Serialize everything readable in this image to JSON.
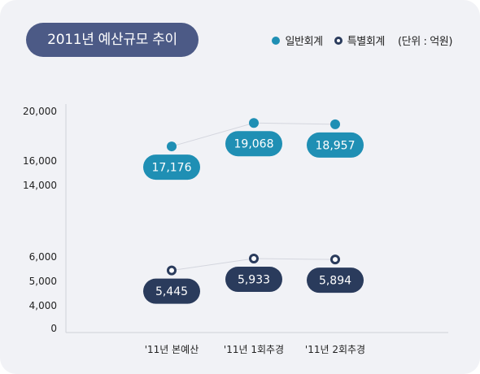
{
  "title": "2011년 예산규모 추이",
  "legend": {
    "general": "일반회계",
    "special": "특별회계",
    "unit": "(단위 : 억원)"
  },
  "colors": {
    "general": "#1f8fb4",
    "special": "#2a3b5c",
    "title_bg": "#4c5a86",
    "connector": "#d4d6de"
  },
  "chart_data": {
    "type": "line",
    "categories": [
      "'11년 본예산",
      "'11년 1회추경",
      "'11년 2회추경"
    ],
    "y_ticks": [
      "20,000",
      "16,000",
      "14,000",
      "6,000",
      "5,000",
      "4,000",
      "0"
    ],
    "axis_break": true,
    "series": [
      {
        "name": "일반회계",
        "values": [
          17176,
          19068,
          18957
        ],
        "labels": [
          "17,176",
          "19,068",
          "18,957"
        ]
      },
      {
        "name": "특별회계",
        "values": [
          5445,
          5933,
          5894
        ],
        "labels": [
          "5,445",
          "5,933",
          "5,894"
        ]
      }
    ]
  }
}
